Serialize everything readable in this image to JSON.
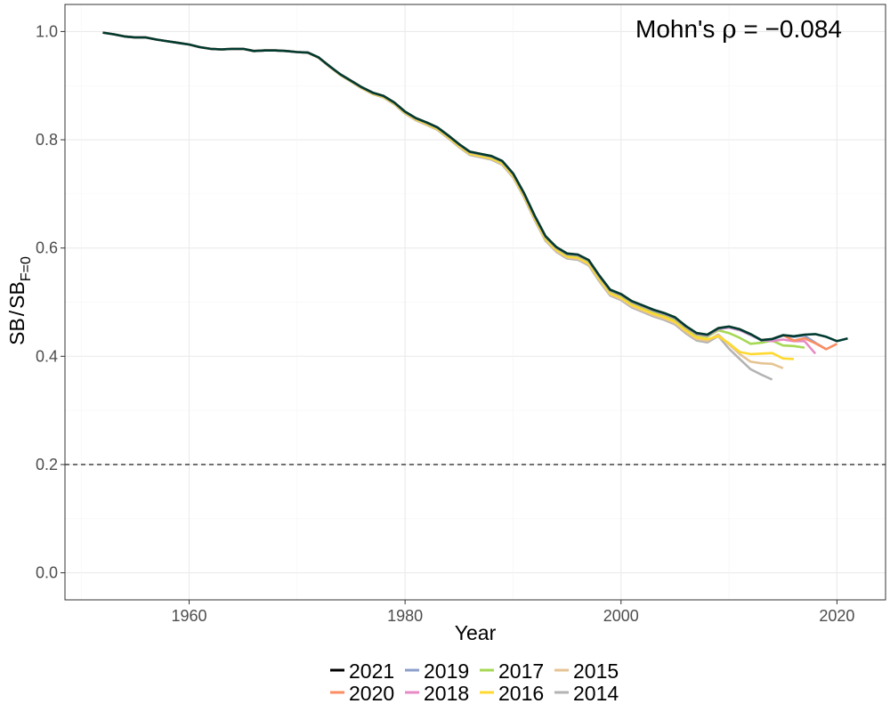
{
  "chart_data": {
    "type": "line",
    "xlabel": "Year",
    "ylabel": {
      "main": "SB",
      "sep": "/",
      "main2": "SB",
      "sub": "F=0"
    },
    "xlim": [
      1948.5,
      2024.5
    ],
    "ylim": [
      -0.05,
      1.05
    ],
    "x_ticks": [
      1960,
      1980,
      2000,
      2020
    ],
    "x_tick_labels": [
      "1960",
      "1980",
      "2000",
      "2020"
    ],
    "y_ticks": [
      0.0,
      0.2,
      0.4,
      0.6,
      0.8,
      1.0
    ],
    "y_tick_labels": [
      "0.0",
      "0.2",
      "0.4",
      "0.6",
      "0.8",
      "1.0"
    ],
    "grid": true,
    "reference_line": {
      "y": 0.2,
      "style": "dashed",
      "color": "#333333"
    },
    "annotation": {
      "prefix": "Mohn's ",
      "symbol": "ρ",
      "rest": " = −0.084"
    },
    "legend_position": "bottom",
    "base_series": {
      "x": [
        1952,
        1953,
        1954,
        1955,
        1956,
        1957,
        1958,
        1959,
        1960,
        1961,
        1962,
        1963,
        1964,
        1965,
        1966,
        1967,
        1968,
        1969,
        1970,
        1971,
        1972,
        1973,
        1974,
        1975,
        1976,
        1977,
        1978,
        1979,
        1980,
        1981,
        1982,
        1983,
        1984,
        1985,
        1986,
        1987,
        1988,
        1989,
        1990,
        1991,
        1992,
        1993,
        1994,
        1995,
        1996,
        1997,
        1998,
        1999,
        2000,
        2001,
        2002,
        2003,
        2004,
        2005,
        2006,
        2007,
        2008,
        2009,
        2010,
        2011,
        2012,
        2013,
        2014,
        2015,
        2016,
        2017,
        2018,
        2019,
        2020,
        2021
      ],
      "y": [
        0.998,
        0.995,
        0.991,
        0.989,
        0.989,
        0.985,
        0.982,
        0.979,
        0.976,
        0.971,
        0.968,
        0.967,
        0.968,
        0.968,
        0.964,
        0.965,
        0.965,
        0.964,
        0.962,
        0.961,
        0.952,
        0.936,
        0.921,
        0.909,
        0.897,
        0.887,
        0.881,
        0.869,
        0.852,
        0.84,
        0.832,
        0.823,
        0.808,
        0.792,
        0.778,
        0.774,
        0.77,
        0.761,
        0.738,
        0.702,
        0.66,
        0.622,
        0.602,
        0.59,
        0.588,
        0.578,
        0.549,
        0.523,
        0.515,
        0.502,
        0.494,
        0.486,
        0.48,
        0.472,
        0.456,
        0.443,
        0.44,
        0.452,
        0.455,
        0.45,
        0.441,
        0.43,
        0.432,
        0.439,
        0.437,
        0.44,
        0.441,
        0.436,
        0.428,
        0.433
      ]
    },
    "series": [
      {
        "name": "2014",
        "color": "#B3B3B3",
        "end_year": 2014,
        "offset_max": 0.015,
        "tail": [
          0.414,
          0.395,
          0.376,
          0.366,
          0.357
        ]
      },
      {
        "name": "2015",
        "color": "#E5C494",
        "end_year": 2015,
        "offset_max": 0.012,
        "tail": [
          0.422,
          0.404,
          0.39,
          0.387,
          0.386,
          0.378
        ]
      },
      {
        "name": "2016",
        "color": "#FFD92F",
        "end_year": 2016,
        "offset_max": 0.009,
        "tail": [
          0.437,
          0.424,
          0.408,
          0.404,
          0.405,
          0.406,
          0.396,
          0.395
        ]
      },
      {
        "name": "2017",
        "color": "#A6D854",
        "end_year": 2017,
        "offset_max": 0.004,
        "tail": [
          0.443,
          0.434,
          0.423,
          0.425,
          0.429,
          0.42,
          0.419,
          0.416
        ]
      },
      {
        "name": "2018",
        "color": "#E78AC3",
        "end_year": 2018,
        "offset_max": 0.002,
        "tail": [
          0.43,
          0.428,
          0.431,
          0.428,
          0.428,
          0.405
        ]
      },
      {
        "name": "2019",
        "color": "#8DA0CB",
        "end_year": 2019,
        "offset_max": 0.001,
        "tail": [
          0.438,
          0.436,
          0.438,
          0.425,
          0.413
        ]
      },
      {
        "name": "2020",
        "color": "#FC8D62",
        "end_year": 2020,
        "offset_max": 0.0,
        "tail": [
          0.429,
          0.433,
          0.424,
          0.413,
          0.423
        ]
      },
      {
        "name": "2021",
        "color": "#003A30",
        "end_year": 2021,
        "offset_max": 0.0,
        "tail": []
      }
    ],
    "legend_items": [
      {
        "name": "2021",
        "color": "#000000"
      },
      {
        "name": "2019",
        "color": "#8DA0CB"
      },
      {
        "name": "2017",
        "color": "#A6D854"
      },
      {
        "name": "2015",
        "color": "#E5C494"
      },
      {
        "name": "2020",
        "color": "#FC8D62"
      },
      {
        "name": "2018",
        "color": "#E78AC3"
      },
      {
        "name": "2016",
        "color": "#FFD92F"
      },
      {
        "name": "2014",
        "color": "#B3B3B3"
      }
    ]
  }
}
